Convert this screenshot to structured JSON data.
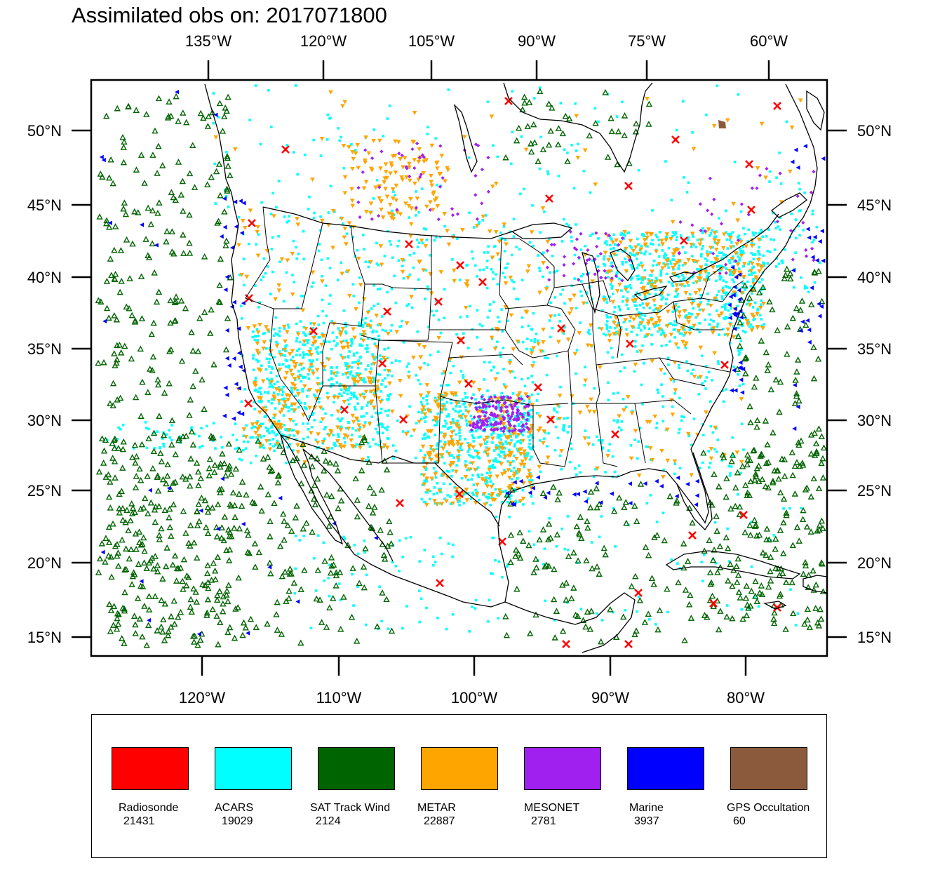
{
  "title": "Assimilated obs on: 2017071800",
  "map": {
    "lon_range": [
      -128,
      -74
    ],
    "lat_range": [
      14,
      53
    ],
    "top_lon_labels": [
      "135°W",
      "120°W",
      "105°W",
      "90°W",
      "75°W",
      "60°W"
    ],
    "bottom_lon_labels": [
      "120°W",
      "110°W",
      "100°W",
      "90°W",
      "80°W"
    ],
    "lat_labels": [
      "50°N",
      "45°N",
      "40°N",
      "35°N",
      "30°N",
      "25°N",
      "20°N",
      "15°N"
    ],
    "colors": {
      "coastline": "#000000",
      "frame": "#000000"
    }
  },
  "legend": [
    {
      "name": "Radiosonde",
      "count": "21431",
      "color": "#ff0000",
      "marker": "x-mark"
    },
    {
      "name": "ACARS",
      "count": "19029",
      "color": "#00ffff",
      "marker": "dot"
    },
    {
      "name": "SAT Track Wind",
      "count": "2124",
      "color": "#006400",
      "marker": "triangle-up"
    },
    {
      "name": "METAR",
      "count": "22887",
      "color": "#ffa500",
      "marker": "triangle-down"
    },
    {
      "name": "MESONET",
      "count": "2781",
      "color": "#a020f0",
      "marker": "diamond"
    },
    {
      "name": "Marine",
      "count": "3937",
      "color": "#0000ff",
      "marker": "triangle-left"
    },
    {
      "name": "GPS Occultation",
      "count": "60",
      "color": "#8b5a3c",
      "marker": "pentagon"
    }
  ]
}
